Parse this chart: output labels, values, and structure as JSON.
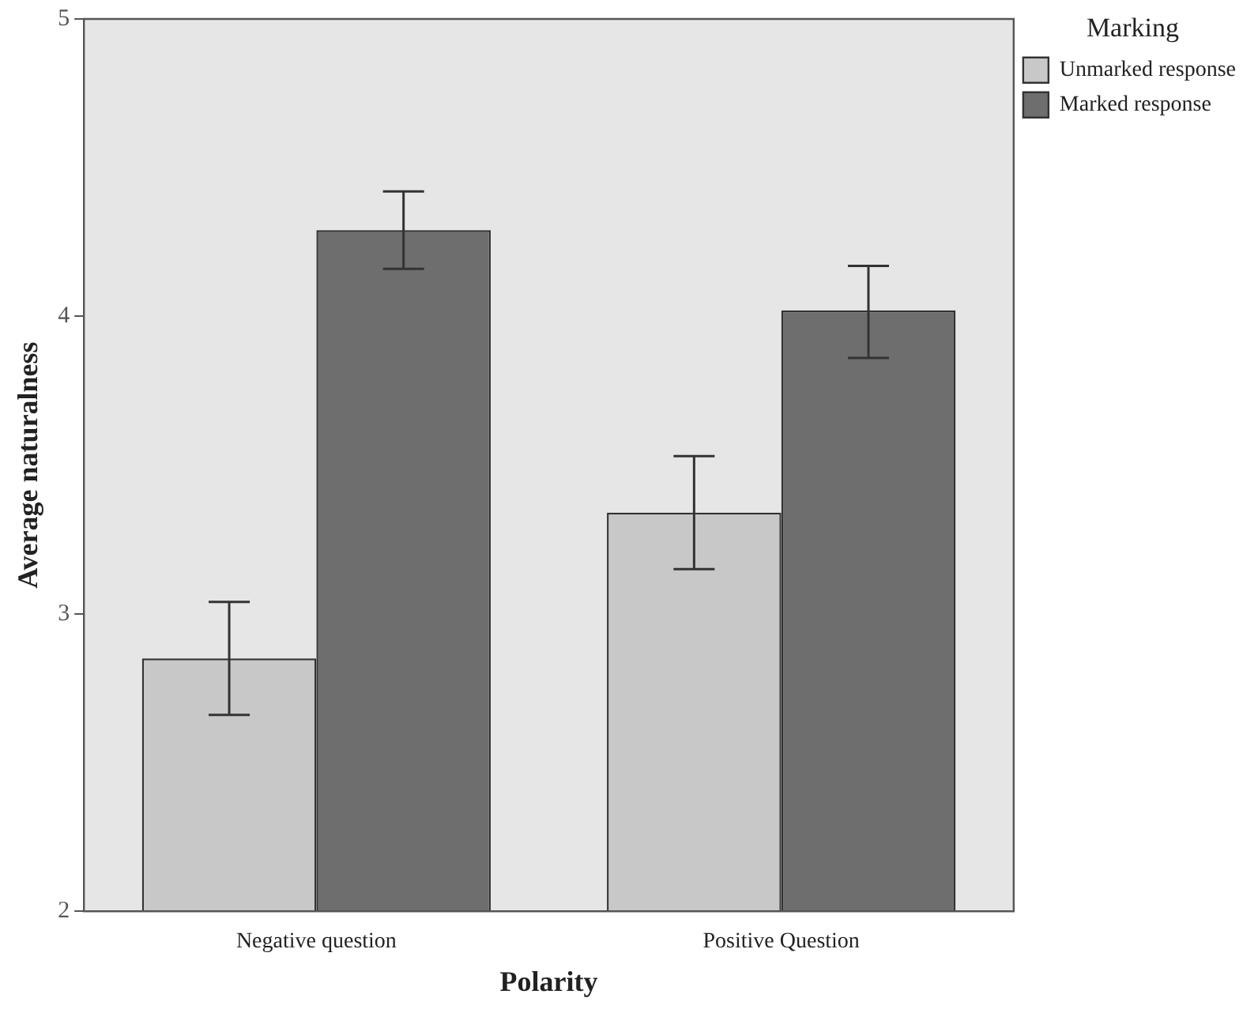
{
  "chart_data": {
    "type": "bar",
    "xlabel": "Polarity",
    "ylabel": "Average naturalness",
    "legend_title": "Marking",
    "categories": [
      "Negative question",
      "Positive Question"
    ],
    "series": [
      {
        "name": "Unmarked response",
        "color": "#c8c8c8",
        "values": [
          2.85,
          3.34
        ],
        "errors": [
          [
            2.66,
            3.04
          ],
          [
            3.15,
            3.53
          ]
        ]
      },
      {
        "name": "Marked response",
        "color": "#6e6e6e",
        "values": [
          4.29,
          4.02
        ],
        "errors": [
          [
            4.16,
            4.42
          ],
          [
            3.86,
            4.17
          ]
        ]
      }
    ],
    "ylim": [
      2,
      5
    ],
    "yticks": [
      2,
      3,
      4,
      5
    ],
    "grid": false,
    "legend": "top right"
  }
}
